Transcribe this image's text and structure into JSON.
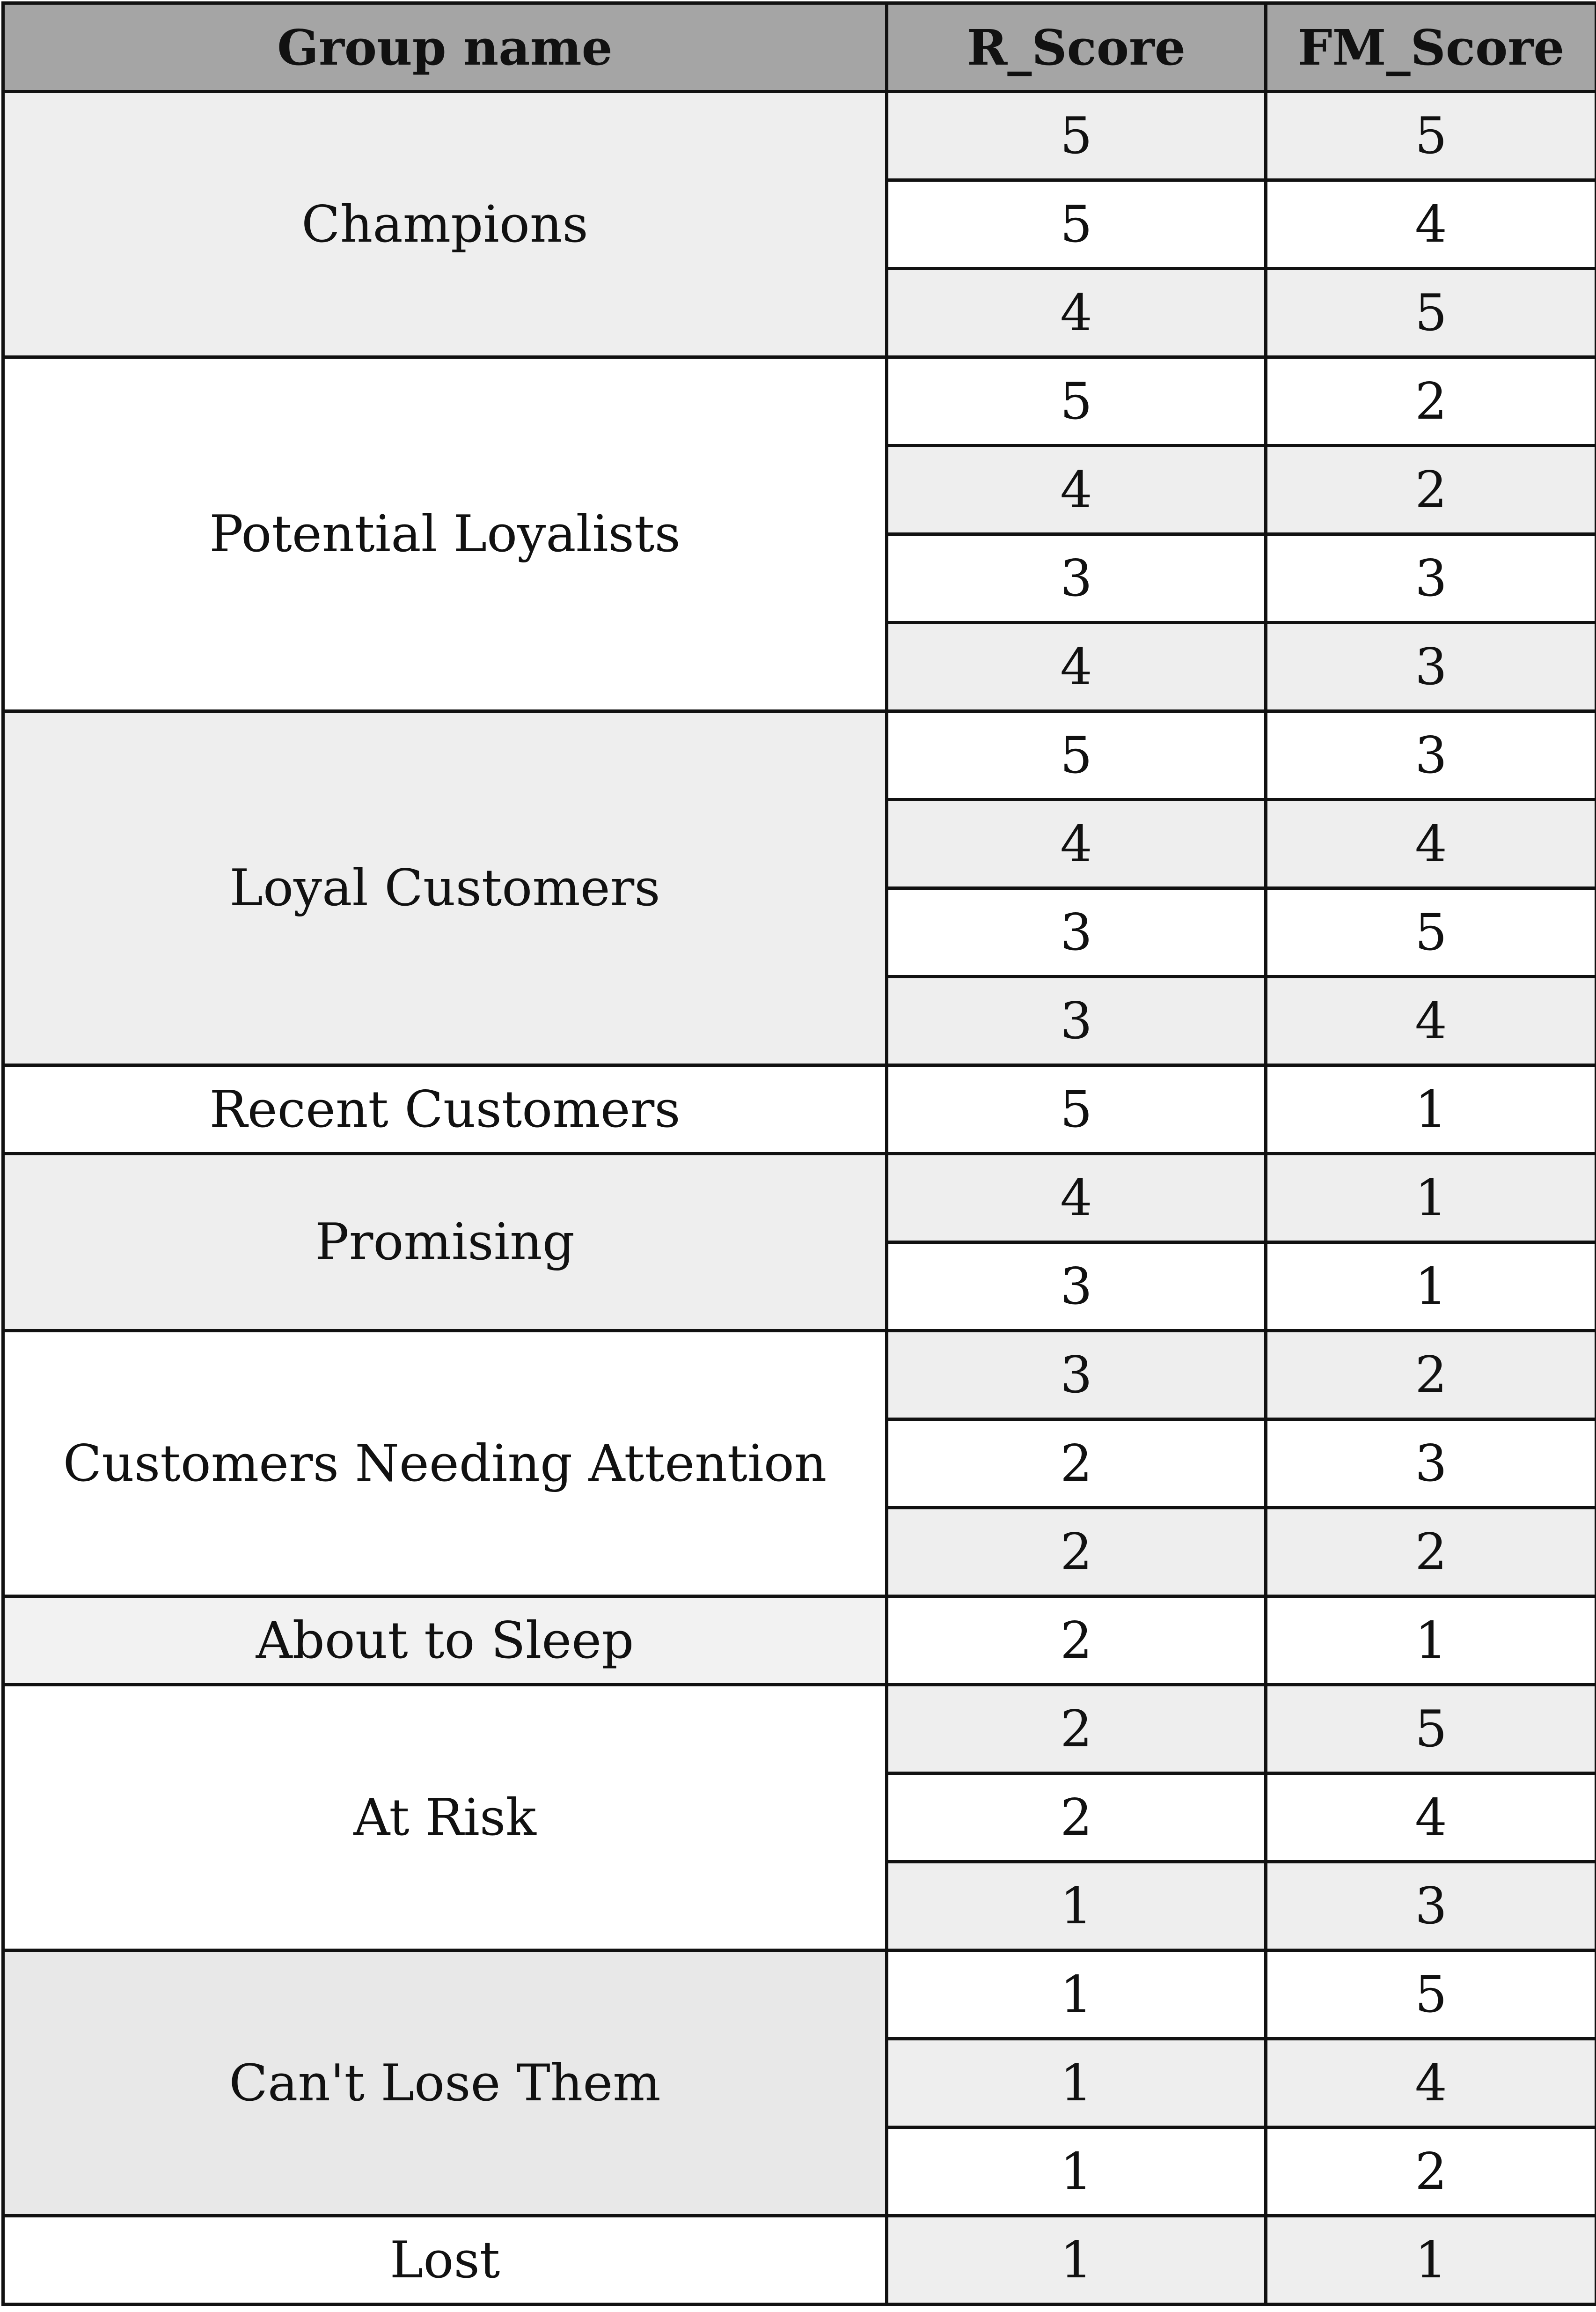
{
  "headers": [
    "Group name",
    "R_Score",
    "FM_Score"
  ],
  "groups": [
    {
      "name": "Champions",
      "rows": [
        [
          "5",
          "5"
        ],
        [
          "5",
          "4"
        ],
        [
          "4",
          "5"
        ]
      ]
    },
    {
      "name": "Potential Loyalists",
      "rows": [
        [
          "5",
          "2"
        ],
        [
          "4",
          "2"
        ],
        [
          "3",
          "3"
        ],
        [
          "4",
          "3"
        ]
      ]
    },
    {
      "name": "Loyal Customers",
      "rows": [
        [
          "5",
          "3"
        ],
        [
          "4",
          "4"
        ],
        [
          "3",
          "5"
        ],
        [
          "3",
          "4"
        ]
      ]
    },
    {
      "name": "Recent Customers",
      "rows": [
        [
          "5",
          "1"
        ]
      ]
    },
    {
      "name": "Promising",
      "rows": [
        [
          "4",
          "1"
        ],
        [
          "3",
          "1"
        ]
      ]
    },
    {
      "name": "Customers Needing Attention",
      "rows": [
        [
          "3",
          "2"
        ],
        [
          "2",
          "3"
        ],
        [
          "2",
          "2"
        ]
      ]
    },
    {
      "name": "About to Sleep",
      "rows": [
        [
          "2",
          "1"
        ]
      ]
    },
    {
      "name": "At Risk",
      "rows": [
        [
          "2",
          "5"
        ],
        [
          "2",
          "4"
        ],
        [
          "1",
          "3"
        ]
      ]
    },
    {
      "name": "Can't Lose Them",
      "rows": [
        [
          "1",
          "5"
        ],
        [
          "1",
          "4"
        ],
        [
          "1",
          "2"
        ]
      ]
    },
    {
      "name": "Lost",
      "rows": [
        [
          "1",
          "1"
        ]
      ]
    }
  ],
  "colors": {
    "header_bg": "#a5a5a5",
    "shaded_row": "#eeeeee",
    "plain_row": "#ffffff",
    "border": "#111111"
  }
}
